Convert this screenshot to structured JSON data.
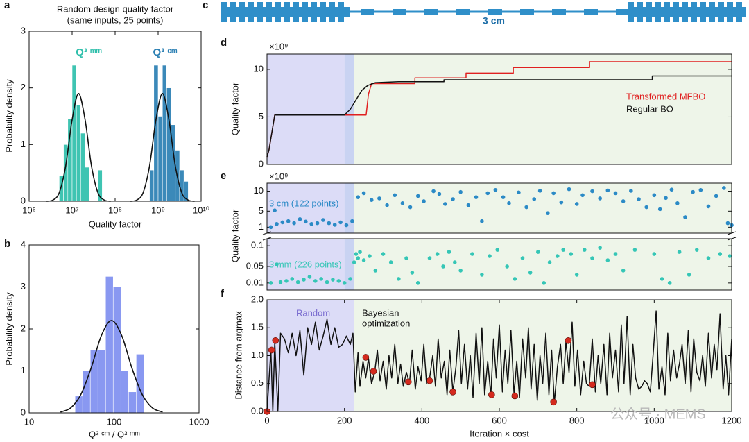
{
  "chart_data": [
    {
      "panel": "a",
      "type": "histogram",
      "title": "Random design quality factor",
      "subtitle": "(same inputs, 25 points)",
      "xlabel": "Quality factor",
      "ylabel": "Probability density",
      "xscale": "log",
      "xlim": [
        1000000,
        10000000000
      ],
      "xticks": [
        {
          "value": 1000000,
          "label": "10⁶"
        },
        {
          "value": 10000000,
          "label": "10⁷"
        },
        {
          "value": 100000000,
          "label": "10⁸"
        },
        {
          "value": 1000000000,
          "label": "10⁹"
        },
        {
          "value": 10000000000,
          "label": "10¹⁰"
        }
      ],
      "ylim": [
        0,
        3
      ],
      "yticks": [
        0,
        1,
        2,
        3
      ],
      "series": [
        {
          "name": "Q³ ᵐᵐ",
          "color": "#2fbfab",
          "bins": [
            5010000.0,
            6310000.0,
            7940000.0,
            10000000.0,
            12600000.0,
            15800000.0,
            20000000.0,
            25100000.0,
            31600000.0,
            39800000.0,
            50100000.0
          ],
          "values": [
            0.45,
            1.0,
            1.45,
            2.4,
            1.7,
            1.2,
            0.6,
            0,
            0,
            0.55
          ],
          "fit": {
            "color": "#111111",
            "x": [
              2510000.0,
              3550000.0,
              5010000.0,
              7080000.0,
              10000000.0,
              14100000.0,
              20000000.0,
              28200000.0,
              39800000.0,
              56200000.0,
              79400000.0
            ],
            "values": [
              0,
              0.02,
              0.15,
              0.62,
              1.44,
              1.9,
              1.44,
              0.62,
              0.15,
              0.02,
              0
            ]
          }
        },
        {
          "name": "Q³ ᶜᵐ",
          "color": "#2a7fb3",
          "bins": [
            631000000.0,
            794000000.0,
            1000000000.0,
            1260000000.0,
            1580000000.0,
            2000000000.0,
            2510000000.0,
            3160000000.0,
            3980000000.0,
            5010000000.0
          ],
          "values": [
            0.55,
            2.4,
            1.5,
            2.4,
            2.0,
            1.35,
            0.9,
            0.55,
            0.35
          ],
          "fit": {
            "color": "#111111",
            "x": [
              224000000.0,
              316000000.0,
              447000000.0,
              631000000.0,
              891000000.0,
              1260000000.0,
              1780000000.0,
              2510000000.0,
              3550000000.0,
              5010000000.0,
              7080000000.0
            ],
            "values": [
              0,
              0.02,
              0.15,
              0.62,
              1.44,
              1.9,
              1.44,
              0.62,
              0.15,
              0.02,
              0
            ]
          }
        }
      ]
    },
    {
      "panel": "b",
      "type": "histogram",
      "xlabel": "Q³ ᶜᵐ / Q³ ᵐᵐ",
      "ylabel": "Probability density",
      "xscale": "log",
      "xlim": [
        10,
        1000
      ],
      "xticks": [
        10,
        100,
        1000
      ],
      "ylim": [
        0,
        4
      ],
      "yticks": [
        0,
        1,
        2,
        3,
        4
      ],
      "series": [
        {
          "color": "#7f8ff0",
          "bins": [
            34.7,
            42.7,
            52.5,
            64.6,
            79.4,
            97.7,
            120.2,
            147.9,
            182.0,
            223.9
          ],
          "values": [
            0.4,
            1.0,
            1.5,
            1.5,
            3.25,
            3.0,
            1.0,
            0.5,
            1.4
          ],
          "fit": {
            "color": "#111111",
            "x": [
              23.4,
              30.9,
              40.7,
              53.7,
              70.8,
              93.3,
              123,
              162,
              214,
              282,
              372
            ],
            "values": [
              0.02,
              0.12,
              0.44,
              1.07,
              1.84,
              2.2,
              1.84,
              1.07,
              0.44,
              0.12,
              0.02
            ]
          }
        }
      ]
    },
    {
      "panel": "c",
      "type": "diagram",
      "label": "3 cm",
      "color": "#2f8fc9"
    },
    {
      "panel": "d",
      "type": "line",
      "ylabel": "Quality factor",
      "multiplier": "×10⁹",
      "legend": "right",
      "xlim": [
        0,
        1200
      ],
      "ylim": [
        0,
        11.6
      ],
      "yticks": [
        0,
        5,
        10
      ],
      "regions": [
        {
          "x": [
            0,
            200
          ],
          "color": "#dcdcf7"
        },
        {
          "x": [
            200,
            225
          ],
          "color": "#c9d3f2"
        },
        {
          "x": [
            225,
            1200
          ],
          "color": "#eef5e9"
        }
      ],
      "series": [
        {
          "name": "Transformed MFBO",
          "color": "#e02020",
          "x": [
            0,
            5,
            20,
            225,
            256,
            262,
            270,
            382,
            382,
            514,
            514,
            636,
            636,
            833,
            833,
            1200
          ],
          "values": [
            0.8,
            1.5,
            5.2,
            5.2,
            5.2,
            7.4,
            8.5,
            8.5,
            9.1,
            9.1,
            9.6,
            9.6,
            10.2,
            10.2,
            10.8,
            10.8
          ]
        },
        {
          "name": "Regular BO",
          "color": "#111111",
          "x": [
            0,
            5,
            20,
            200,
            215,
            230,
            245,
            260,
            280,
            340,
            457,
            457,
            995,
            995,
            1200
          ],
          "values": [
            0.8,
            1.5,
            5.2,
            5.2,
            5.8,
            6.8,
            7.8,
            8.3,
            8.6,
            8.7,
            8.7,
            8.9,
            8.9,
            9.3,
            9.3
          ]
        }
      ]
    },
    {
      "panel": "e",
      "type": "scatter",
      "ylabel": "Quality factor",
      "multiplier": "×10⁹",
      "xlim": [
        0,
        1200
      ],
      "ylim": [
        -0.007,
        0.117
      ],
      "yticks": [
        0.01,
        0.05,
        0.1
      ],
      "y2lim": [
        -0.5,
        12
      ],
      "y2ticks": [
        1,
        5,
        10
      ],
      "regions": [
        {
          "x": [
            0,
            200
          ],
          "color": "#dcdcf7"
        },
        {
          "x": [
            200,
            225
          ],
          "color": "#c9d3f2"
        },
        {
          "x": [
            225,
            1200
          ],
          "color": "#eef5e9"
        }
      ],
      "series": [
        {
          "name": "3 cm (122 points)",
          "color": "#2b8ac6",
          "axis": "y2",
          "x": [
            10,
            20,
            25,
            40,
            55,
            70,
            85,
            100,
            115,
            130,
            145,
            160,
            175,
            190,
            205,
            220,
            235,
            250,
            270,
            290,
            310,
            330,
            350,
            370,
            390,
            405,
            430,
            445,
            460,
            480,
            500,
            520,
            540,
            555,
            570,
            590,
            610,
            625,
            650,
            670,
            690,
            705,
            725,
            740,
            760,
            780,
            800,
            815,
            840,
            860,
            880,
            900,
            920,
            940,
            960,
            980,
            1000,
            1015,
            1030,
            1045,
            1060,
            1080,
            1100,
            1120,
            1140,
            1160,
            1180,
            1190,
            1200
          ],
          "values": [
            1.0,
            5.2,
            1.8,
            2.2,
            2.5,
            2.0,
            3.0,
            2.4,
            1.8,
            2.0,
            2.8,
            2.0,
            1.6,
            2.2,
            1.5,
            2.5,
            8.5,
            9.5,
            7.8,
            8.2,
            6.5,
            9.0,
            7.0,
            6.0,
            8.8,
            7.5,
            10.0,
            9.3,
            6.8,
            8.0,
            9.8,
            6.5,
            8.5,
            2.5,
            9.5,
            10.3,
            8.5,
            7.0,
            9.7,
            6.0,
            8.0,
            10.1,
            4.5,
            9.5,
            7.2,
            10.5,
            6.8,
            9.0,
            10.0,
            8.2,
            10.2,
            9.5,
            7.5,
            10.1,
            8.0,
            6.0,
            9.0,
            5.5,
            8.3,
            10.4,
            7.0,
            3.5,
            9.8,
            10.3,
            6.2,
            8.8,
            10.8,
            2.0,
            1.5
          ]
        },
        {
          "name": "3 mm (226 points)",
          "color": "#35c6b6",
          "x": [
            10,
            25,
            35,
            50,
            65,
            80,
            95,
            110,
            125,
            140,
            155,
            170,
            185,
            200,
            215,
            225,
            230,
            235,
            240,
            250,
            265,
            280,
            300,
            320,
            340,
            360,
            375,
            390,
            420,
            440,
            455,
            470,
            485,
            500,
            530,
            555,
            575,
            595,
            620,
            640,
            660,
            680,
            700,
            715,
            730,
            750,
            765,
            785,
            800,
            820,
            840,
            860,
            880,
            900,
            920,
            950,
            1000,
            1020,
            1040,
            1065,
            1090,
            1110,
            1140,
            1170,
            1195
          ],
          "values": [
            0.01,
            0.055,
            0.012,
            0.015,
            0.02,
            0.012,
            0.018,
            0.025,
            0.015,
            0.02,
            0.012,
            0.018,
            0.015,
            0.01,
            0.02,
            0.06,
            0.08,
            0.07,
            0.085,
            0.065,
            0.075,
            0.04,
            0.08,
            0.06,
            0.02,
            0.07,
            0.035,
            0.01,
            0.07,
            0.08,
            0.05,
            0.085,
            0.06,
            0.04,
            0.08,
            0.03,
            0.075,
            0.09,
            0.05,
            0.02,
            0.07,
            0.035,
            0.085,
            0.01,
            0.06,
            0.075,
            0.09,
            0.08,
            0.03,
            0.09,
            0.07,
            0.095,
            0.065,
            0.08,
            0.04,
            0.09,
            0.08,
            0.02,
            0.01,
            0.085,
            0.03,
            0.09,
            0.07,
            0.08,
            0.075
          ]
        }
      ]
    },
    {
      "panel": "f",
      "type": "line",
      "xlabel": "Iteration × cost",
      "ylabel": "Distance from argmax",
      "xlim": [
        0,
        1200
      ],
      "xticks": [
        0,
        200,
        400,
        600,
        800,
        1000,
        1200
      ],
      "ylim": [
        0,
        2
      ],
      "yticks": [
        {
          "value": 0,
          "label": "0.0"
        },
        0.5,
        {
          "value": 1,
          "label": "1.0"
        },
        1.5,
        {
          "value": 2,
          "label": "2.0"
        }
      ],
      "regions": [
        {
          "x": [
            0,
            225
          ],
          "color": "#dcdcf7"
        },
        {
          "x": [
            225,
            1200
          ],
          "color": "#eef5e9"
        }
      ],
      "annotations": [
        {
          "text": "Random",
          "color": "#7a6cd0"
        },
        {
          "text": "Bayesian",
          "color": "#111111"
        },
        {
          "text": "optimization",
          "color": "#111111"
        }
      ],
      "series": [
        {
          "color": "#111111",
          "x": [
            0,
            10,
            15,
            20,
            28,
            35,
            45,
            55,
            65,
            75,
            85,
            95,
            105,
            115,
            125,
            135,
            145,
            155,
            165,
            175,
            185,
            195,
            205,
            215,
            222,
            228,
            235,
            240,
            248,
            255,
            262,
            270,
            278,
            285,
            292,
            300,
            308,
            315,
            322,
            330,
            338,
            345,
            352,
            360,
            368,
            375,
            383,
            390,
            398,
            405,
            412,
            420,
            428,
            435,
            442,
            450,
            458,
            465,
            472,
            480,
            488,
            495,
            502,
            510,
            518,
            525,
            532,
            540,
            548,
            555,
            562,
            570,
            578,
            585,
            592,
            600,
            608,
            615,
            622,
            630,
            638,
            645,
            652,
            660,
            668,
            675,
            682,
            690,
            698,
            705,
            712,
            720,
            728,
            735,
            742,
            750,
            758,
            765,
            772,
            780,
            788,
            795,
            802,
            810,
            818,
            825,
            832,
            840,
            848,
            855,
            862,
            870,
            878,
            885,
            892,
            900,
            908,
            915,
            922,
            930,
            938,
            945,
            952,
            960,
            968,
            975,
            982,
            990,
            998,
            1005,
            1012,
            1020,
            1028,
            1035,
            1042,
            1050,
            1058,
            1065,
            1072,
            1080,
            1088,
            1095,
            1102,
            1110,
            1118,
            1125,
            1132,
            1140,
            1148,
            1155,
            1162,
            1170,
            1178,
            1185,
            1192,
            1200
          ],
          "values": [
            0,
            1.1,
            0,
            1.25,
            0,
            1.4,
            1.3,
            1.05,
            1.4,
            1.0,
            1.45,
            0.65,
            1.5,
            1.2,
            1.6,
            1.1,
            1.35,
            1.65,
            1.2,
            1.5,
            1.15,
            1.2,
            1.35,
            1.2,
            1.4,
            0.35,
            1.05,
            0.45,
            0.9,
            0.6,
            0.95,
            0.5,
            0.7,
            1.1,
            0.55,
            0.9,
            0.4,
            1.0,
            0.6,
            1.2,
            0.5,
            0.85,
            0.45,
            0.7,
            0.5,
            1.1,
            0.4,
            0.8,
            0.55,
            1.2,
            0.5,
            0.6,
            1.0,
            0.45,
            1.3,
            0.6,
            0.9,
            0.3,
            1.1,
            0.35,
            0.8,
            1.45,
            0.5,
            1.2,
            0.4,
            1.0,
            0.25,
            1.4,
            0.5,
            1.5,
            0.3,
            0.9,
            0.28,
            1.3,
            0.6,
            1.55,
            0.35,
            1.1,
            0.5,
            1.45,
            0.3,
            0.9,
            0.25,
            1.3,
            0.6,
            1.5,
            0.4,
            1.2,
            0.2,
            1.0,
            0.5,
            1.4,
            0.3,
            1.1,
            0.15,
            0.8,
            1.2,
            0.5,
            1.25,
            0.7,
            1.6,
            0.45,
            1.1,
            0.3,
            0.9,
            0.5,
            0.45,
            1.3,
            0.35,
            1.0,
            0.5,
            1.2,
            0.3,
            1.4,
            0.6,
            1.1,
            0.35,
            1.55,
            0.5,
            1.7,
            0.3,
            1.2,
            0.6,
            0.4,
            0.45,
            0.55,
            0.5,
            0.35,
            1.1,
            1.8,
            0.4,
            0.8,
            0.3,
            1.4,
            0.55,
            1.1,
            0.6,
            0.85,
            1.2,
            0.5,
            1.45,
            0.35,
            1.3,
            0.7,
            0.55,
            1.0,
            0.45,
            1.4,
            0.6,
            1.2,
            0.75,
            1.75,
            0.4,
            1.0,
            0.3,
            1.3
          ]
        },
        {
          "type": "scatter",
          "color": "#d42a1e",
          "x": [
            0,
            12,
            22,
            255,
            275,
            365,
            420,
            480,
            580,
            640,
            740,
            778,
            840
          ],
          "values": [
            0,
            1.1,
            1.27,
            0.97,
            0.72,
            0.53,
            0.55,
            0.35,
            0.3,
            0.28,
            0.17,
            1.27,
            0.48
          ]
        }
      ]
    }
  ],
  "watermark": "公众号 · MEMS"
}
